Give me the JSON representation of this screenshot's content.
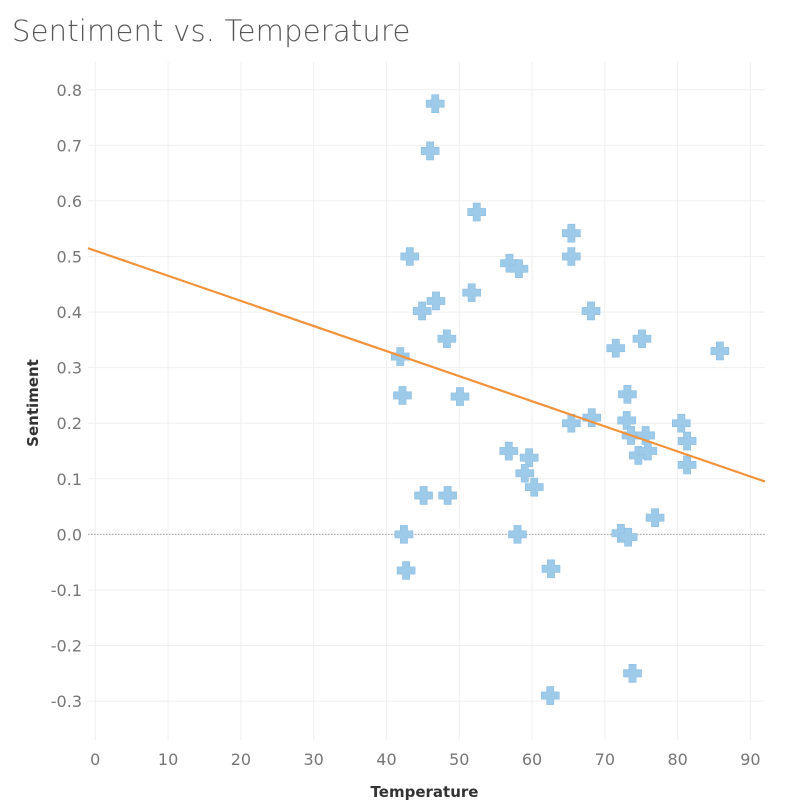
{
  "title": "Sentiment vs. Temperature",
  "chart_data": {
    "type": "scatter",
    "title": "Sentiment vs. Temperature",
    "xlabel": "Temperature",
    "ylabel": "Sentiment",
    "xlim": [
      -1,
      92
    ],
    "ylim": [
      -0.37,
      0.85
    ],
    "xticks": [
      0,
      10,
      20,
      30,
      40,
      50,
      60,
      70,
      80,
      90
    ],
    "yticks": [
      -0.3,
      -0.2,
      -0.1,
      0.0,
      0.1,
      0.2,
      0.3,
      0.4,
      0.5,
      0.6,
      0.7,
      0.8
    ],
    "ytick_labels": [
      "-0.3",
      "-0.2",
      "-0.1",
      "0.0",
      "0.1",
      "0.2",
      "0.3",
      "0.4",
      "0.5",
      "0.6",
      "0.7",
      "0.8"
    ],
    "grid": true,
    "zero_line": true,
    "marker": "cross",
    "marker_color": "#9ecae9",
    "trend_color": "#f2923b",
    "trend_line": {
      "x": [
        -1,
        92
      ],
      "y": [
        0.515,
        0.095
      ]
    },
    "points": [
      {
        "x": 46.7,
        "y": 0.775
      },
      {
        "x": 46.0,
        "y": 0.69
      },
      {
        "x": 52.4,
        "y": 0.58
      },
      {
        "x": 43.2,
        "y": 0.5
      },
      {
        "x": 51.7,
        "y": 0.435
      },
      {
        "x": 46.8,
        "y": 0.42
      },
      {
        "x": 44.9,
        "y": 0.402
      },
      {
        "x": 48.3,
        "y": 0.352
      },
      {
        "x": 41.9,
        "y": 0.32
      },
      {
        "x": 42.2,
        "y": 0.25
      },
      {
        "x": 50.1,
        "y": 0.248
      },
      {
        "x": 45.1,
        "y": 0.07
      },
      {
        "x": 48.4,
        "y": 0.07
      },
      {
        "x": 42.4,
        "y": 0.0
      },
      {
        "x": 42.7,
        "y": -0.065
      },
      {
        "x": 56.9,
        "y": 0.488
      },
      {
        "x": 58.2,
        "y": 0.478
      },
      {
        "x": 65.4,
        "y": 0.542
      },
      {
        "x": 65.4,
        "y": 0.5
      },
      {
        "x": 68.1,
        "y": 0.402
      },
      {
        "x": 71.5,
        "y": 0.335
      },
      {
        "x": 75.1,
        "y": 0.352
      },
      {
        "x": 85.8,
        "y": 0.33
      },
      {
        "x": 73.1,
        "y": 0.252
      },
      {
        "x": 73.0,
        "y": 0.205
      },
      {
        "x": 65.4,
        "y": 0.2
      },
      {
        "x": 68.2,
        "y": 0.21
      },
      {
        "x": 73.6,
        "y": 0.178
      },
      {
        "x": 75.6,
        "y": 0.178
      },
      {
        "x": 80.5,
        "y": 0.2
      },
      {
        "x": 81.3,
        "y": 0.168
      },
      {
        "x": 74.6,
        "y": 0.142
      },
      {
        "x": 75.9,
        "y": 0.15
      },
      {
        "x": 81.3,
        "y": 0.125
      },
      {
        "x": 56.8,
        "y": 0.15
      },
      {
        "x": 59.6,
        "y": 0.138
      },
      {
        "x": 59.0,
        "y": 0.11
      },
      {
        "x": 60.3,
        "y": 0.085
      },
      {
        "x": 58.0,
        "y": 0.0
      },
      {
        "x": 62.6,
        "y": -0.062
      },
      {
        "x": 62.5,
        "y": -0.29
      },
      {
        "x": 72.2,
        "y": 0.002
      },
      {
        "x": 73.2,
        "y": -0.005
      },
      {
        "x": 76.9,
        "y": 0.03
      },
      {
        "x": 73.8,
        "y": -0.25
      }
    ]
  }
}
